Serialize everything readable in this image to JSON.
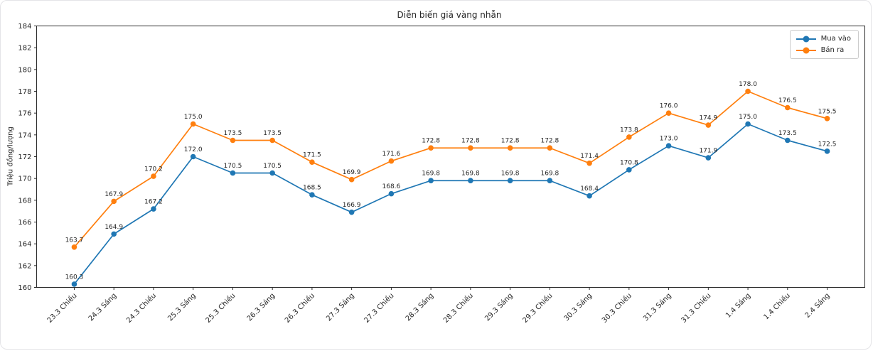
{
  "chart_data": {
    "type": "line",
    "title": "Diễn biến giá vàng nhẫn",
    "xlabel": "",
    "ylabel": "Triệu đồng/lượng",
    "categories": [
      "23.3 Chiều",
      "24.3 Sáng",
      "24.3 Chiều",
      "25.3 Sáng",
      "25.3 Chiều",
      "26.3 Sáng",
      "26.3 Chiều",
      "27.3 Sáng",
      "27.3 Chiều",
      "28.3 Sáng",
      "28.3 Chiều",
      "29.3 Sáng",
      "29.3 Chiều",
      "30.3 Sáng",
      "30.3 Chiều",
      "31.3 Sáng",
      "31.3 Chiều",
      "1.4 Sáng",
      "1.4 Chiều",
      "2.4 Sáng"
    ],
    "series": [
      {
        "name": "Mua vào",
        "color": "#1f77b4",
        "marker": "circle",
        "values": [
          160.3,
          164.9,
          167.2,
          172.0,
          170.5,
          170.5,
          168.5,
          166.9,
          168.6,
          169.8,
          169.8,
          169.8,
          169.8,
          168.4,
          170.8,
          173.0,
          171.9,
          175.0,
          173.5,
          172.5
        ]
      },
      {
        "name": "Bán ra",
        "color": "#ff7f0e",
        "marker": "circle",
        "values": [
          163.7,
          167.9,
          170.2,
          175.0,
          173.5,
          173.5,
          171.5,
          169.9,
          171.6,
          172.8,
          172.8,
          172.8,
          172.8,
          171.4,
          173.8,
          176.0,
          174.9,
          178.0,
          176.5,
          175.5
        ]
      }
    ],
    "ylim": [
      160,
      184
    ],
    "ytick_step": 2,
    "grid": false,
    "legend_position": "upper right",
    "point_labels": true,
    "value_format": "one-decimal",
    "axis_color": "#2b2b2b",
    "text_color": "#262626"
  }
}
